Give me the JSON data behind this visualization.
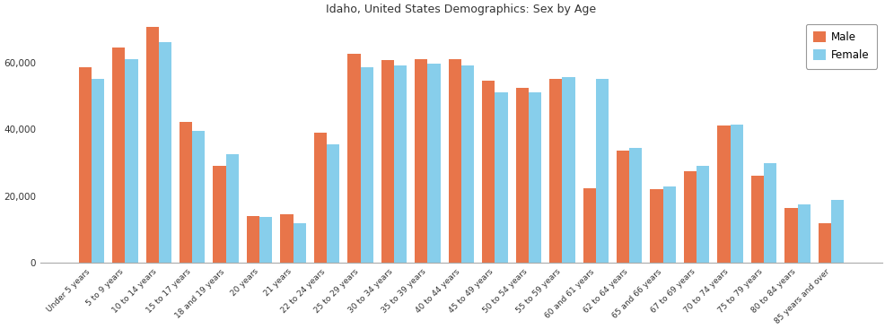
{
  "title": "Idaho, United States Demographics: Sex by Age",
  "categories": [
    "Under 5 years",
    "5 to 9 years",
    "10 to 14 years",
    "15 to 17 years",
    "18 and 19 years",
    "20 years",
    "21 years",
    "22 to 24 years",
    "25 to 29 years",
    "30 to 34 years",
    "35 to 39 years",
    "40 to 44 years",
    "45 to 49 years",
    "50 to 54 years",
    "55 to 59 years",
    "60 and 61 years",
    "62 to 64 years",
    "65 and 66 years",
    "67 to 69 years",
    "70 to 74 years",
    "75 to 79 years",
    "80 to 84 years",
    "85 years and over"
  ],
  "male": [
    58500,
    64500,
    70500,
    42200,
    29000,
    14000,
    14500,
    39000,
    62500,
    60700,
    61000,
    61000,
    54500,
    52500,
    55000,
    22500,
    33500,
    22000,
    27500,
    41000,
    26000,
    16500,
    12000
  ],
  "female": [
    55000,
    61000,
    66000,
    39500,
    32500,
    13700,
    12000,
    35500,
    58500,
    59000,
    59500,
    59000,
    51000,
    51000,
    55500,
    55000,
    34500,
    23000,
    29000,
    41500,
    30000,
    17500,
    19000
  ],
  "male_color": "#E8754A",
  "female_color": "#87CEEB",
  "ylim": [
    0,
    73000
  ],
  "yticks": [
    0,
    20000,
    40000,
    60000
  ],
  "background_color": "#ffffff",
  "legend_labels": [
    "Male",
    "Female"
  ],
  "bar_width": 0.38
}
